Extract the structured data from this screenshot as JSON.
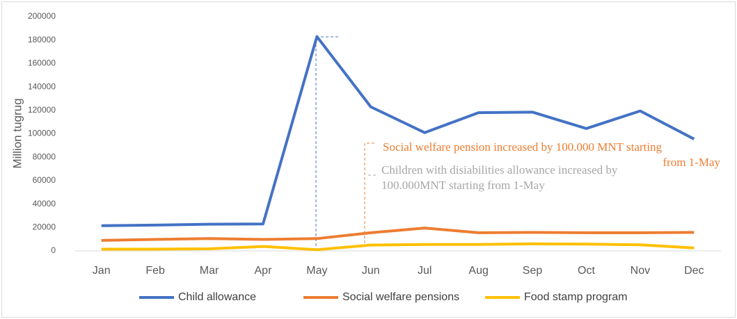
{
  "chart_data": {
    "type": "line",
    "y_label": "Million tugrug",
    "categories": [
      "Jan",
      "Feb",
      "Mar",
      "Apr",
      "May",
      "Jun",
      "Jul",
      "Aug",
      "Sep",
      "Oct",
      "Nov",
      "Dec"
    ],
    "series": [
      {
        "name": "Child allowance",
        "color": "#4472c4",
        "values": [
          21500,
          22000,
          22800,
          23000,
          183000,
          123000,
          101000,
          118000,
          118500,
          104500,
          119500,
          95500
        ]
      },
      {
        "name": "Social welfare pensions",
        "color": "#ed7d31",
        "values": [
          9000,
          9800,
          10500,
          9800,
          10500,
          15500,
          19500,
          15500,
          15800,
          15500,
          15500,
          15800
        ]
      },
      {
        "name": "Food stamp program",
        "color": "#ffc000",
        "values": [
          1500,
          1500,
          1800,
          3800,
          1000,
          5000,
          5500,
          5500,
          6000,
          5800,
          5200,
          2500
        ]
      }
    ],
    "ylim": [
      0,
      200000
    ],
    "yticks": [
      0,
      20000,
      40000,
      60000,
      80000,
      100000,
      120000,
      140000,
      160000,
      180000,
      200000
    ],
    "grid": false,
    "legend": "bottom",
    "annotations": [
      {
        "lines": [
          "Social welfare pension increased by 100.000 MNT starting",
          "from 1-May"
        ],
        "color": "#ed7d31"
      },
      {
        "lines": [
          "Children with disiabilities allowance increased by",
          "100.000MNT starting from 1-May"
        ],
        "color": "#a6a6a6"
      }
    ]
  }
}
